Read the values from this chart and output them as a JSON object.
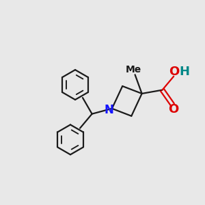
{
  "background_color": "#e8e8e8",
  "bond_color": "#1a1a1a",
  "N_color": "#1414ff",
  "O_color": "#dd0000",
  "H_color": "#008888",
  "line_width": 1.6,
  "figsize": [
    3.0,
    3.0
  ],
  "dpi": 100,
  "xlim": [
    -3.5,
    3.5
  ],
  "ylim": [
    -3.2,
    2.8
  ]
}
